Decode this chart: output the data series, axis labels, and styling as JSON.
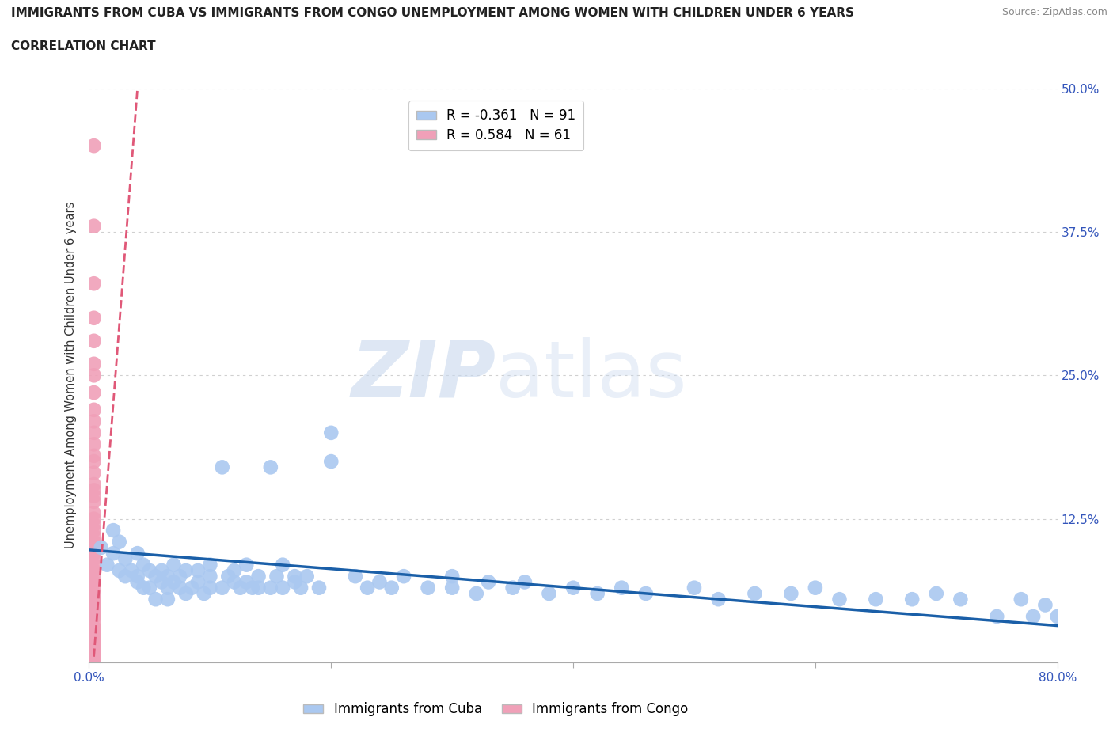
{
  "title_line1": "IMMIGRANTS FROM CUBA VS IMMIGRANTS FROM CONGO UNEMPLOYMENT AMONG WOMEN WITH CHILDREN UNDER 6 YEARS",
  "title_line2": "CORRELATION CHART",
  "source": "Source: ZipAtlas.com",
  "ylabel": "Unemployment Among Women with Children Under 6 years",
  "xlim": [
    0,
    0.8
  ],
  "ylim": [
    0,
    0.5
  ],
  "xticks": [
    0.0,
    0.2,
    0.4,
    0.6,
    0.8
  ],
  "yticks": [
    0.0,
    0.125,
    0.25,
    0.375,
    0.5
  ],
  "cuba_color": "#aac8f0",
  "congo_color": "#f0a0b8",
  "cuba_line_color": "#1a5fa8",
  "congo_line_color": "#e05878",
  "cuba_R": -0.361,
  "cuba_N": 91,
  "congo_R": 0.584,
  "congo_N": 61,
  "watermark_zip": "ZIP",
  "watermark_atlas": "atlas",
  "legend_label_cuba": "Immigrants from Cuba",
  "legend_label_congo": "Immigrants from Congo",
  "cuba_scatter_x": [
    0.01,
    0.015,
    0.02,
    0.02,
    0.025,
    0.025,
    0.03,
    0.03,
    0.035,
    0.04,
    0.04,
    0.04,
    0.045,
    0.045,
    0.05,
    0.05,
    0.055,
    0.055,
    0.06,
    0.06,
    0.065,
    0.065,
    0.065,
    0.07,
    0.07,
    0.075,
    0.075,
    0.08,
    0.08,
    0.085,
    0.09,
    0.09,
    0.095,
    0.1,
    0.1,
    0.1,
    0.11,
    0.11,
    0.115,
    0.12,
    0.12,
    0.125,
    0.13,
    0.13,
    0.135,
    0.14,
    0.14,
    0.15,
    0.15,
    0.155,
    0.16,
    0.16,
    0.17,
    0.17,
    0.175,
    0.18,
    0.19,
    0.2,
    0.2,
    0.22,
    0.23,
    0.24,
    0.25,
    0.26,
    0.28,
    0.3,
    0.3,
    0.32,
    0.33,
    0.35,
    0.36,
    0.38,
    0.4,
    0.42,
    0.44,
    0.46,
    0.5,
    0.52,
    0.55,
    0.58,
    0.6,
    0.62,
    0.65,
    0.68,
    0.7,
    0.72,
    0.75,
    0.77,
    0.78,
    0.79,
    0.8
  ],
  "cuba_scatter_y": [
    0.1,
    0.085,
    0.115,
    0.095,
    0.105,
    0.08,
    0.09,
    0.075,
    0.08,
    0.095,
    0.075,
    0.07,
    0.085,
    0.065,
    0.08,
    0.065,
    0.075,
    0.055,
    0.07,
    0.08,
    0.065,
    0.075,
    0.055,
    0.07,
    0.085,
    0.065,
    0.075,
    0.06,
    0.08,
    0.065,
    0.07,
    0.08,
    0.06,
    0.065,
    0.075,
    0.085,
    0.17,
    0.065,
    0.075,
    0.07,
    0.08,
    0.065,
    0.07,
    0.085,
    0.065,
    0.075,
    0.065,
    0.17,
    0.065,
    0.075,
    0.065,
    0.085,
    0.07,
    0.075,
    0.065,
    0.075,
    0.065,
    0.2,
    0.175,
    0.075,
    0.065,
    0.07,
    0.065,
    0.075,
    0.065,
    0.075,
    0.065,
    0.06,
    0.07,
    0.065,
    0.07,
    0.06,
    0.065,
    0.06,
    0.065,
    0.06,
    0.065,
    0.055,
    0.06,
    0.06,
    0.065,
    0.055,
    0.055,
    0.055,
    0.06,
    0.055,
    0.04,
    0.055,
    0.04,
    0.05,
    0.04
  ],
  "congo_scatter_x": [
    0.004,
    0.004,
    0.004,
    0.004,
    0.004,
    0.004,
    0.004,
    0.004,
    0.004,
    0.004,
    0.004,
    0.004,
    0.004,
    0.004,
    0.004,
    0.004,
    0.004,
    0.004,
    0.004,
    0.004,
    0.004,
    0.004,
    0.004,
    0.004,
    0.004,
    0.004,
    0.004,
    0.004,
    0.004,
    0.004,
    0.004,
    0.004,
    0.004,
    0.004,
    0.004,
    0.004,
    0.004,
    0.004,
    0.004,
    0.004,
    0.004,
    0.004,
    0.004,
    0.004,
    0.004,
    0.004,
    0.004,
    0.004,
    0.004,
    0.004,
    0.004,
    0.004,
    0.004,
    0.004,
    0.004,
    0.004,
    0.004,
    0.004,
    0.004,
    0.004,
    0.004
  ],
  "congo_scatter_y": [
    0.45,
    0.38,
    0.33,
    0.3,
    0.28,
    0.26,
    0.25,
    0.235,
    0.22,
    0.21,
    0.2,
    0.19,
    0.18,
    0.175,
    0.165,
    0.155,
    0.15,
    0.145,
    0.14,
    0.13,
    0.125,
    0.12,
    0.115,
    0.11,
    0.105,
    0.1,
    0.095,
    0.09,
    0.085,
    0.08,
    0.075,
    0.07,
    0.065,
    0.06,
    0.055,
    0.05,
    0.045,
    0.04,
    0.035,
    0.03,
    0.025,
    0.02,
    0.015,
    0.01,
    0.005,
    0.0,
    0.0,
    0.0,
    0.0,
    0.0,
    0.005,
    0.01,
    0.015,
    0.02,
    0.025,
    0.03,
    0.04,
    0.045,
    0.05,
    0.055,
    0.06
  ],
  "cuba_line_x": [
    0.0,
    0.8
  ],
  "cuba_line_y": [
    0.098,
    0.032
  ],
  "congo_line_x": [
    0.004,
    0.04
  ],
  "congo_line_y": [
    0.005,
    0.5
  ]
}
